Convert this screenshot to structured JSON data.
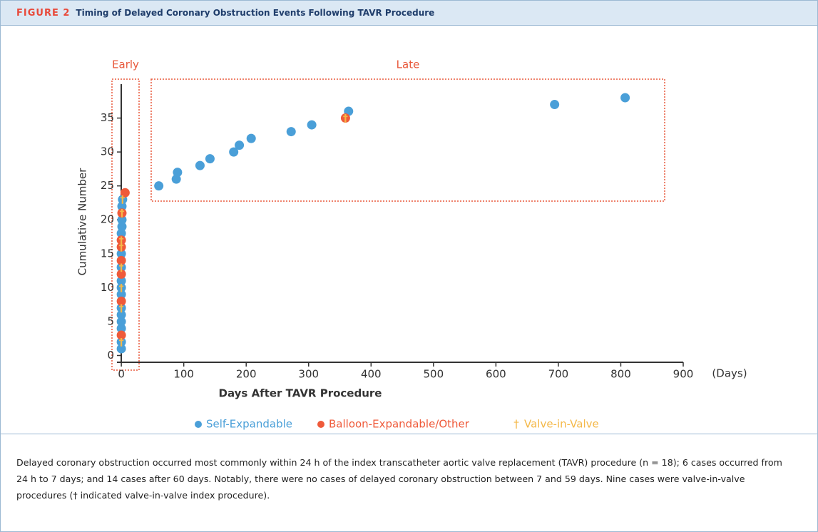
{
  "header": {
    "label": "FIGURE 2",
    "title": "Timing of Delayed Coronary Obstruction Events Following TAVR Procedure"
  },
  "chart_data": {
    "type": "scatter",
    "x_label": "Days After TAVR Procedure",
    "x_unit": "(Days)",
    "y_label": "Cumulative Number",
    "annotations": [
      "Early",
      "Late"
    ],
    "xlim": [
      -7,
      900
    ],
    "ylim": [
      -1,
      40
    ],
    "xticks": [
      0,
      100,
      200,
      300,
      400,
      500,
      600,
      700,
      800,
      900
    ],
    "yticks": [
      0,
      5,
      10,
      15,
      20,
      25,
      30,
      35
    ],
    "series": [
      {
        "name": "Self-Expandable",
        "color": "#4a9fd8",
        "marker": "●",
        "x": [
          0,
          0,
          0,
          0,
          0,
          0,
          0,
          0,
          0,
          0,
          0,
          0,
          1,
          1,
          1,
          2,
          60,
          88,
          90,
          126,
          142,
          180,
          189,
          208,
          272,
          305,
          364,
          694,
          807
        ],
        "values": [
          1,
          2,
          4,
          5,
          6,
          7,
          9,
          10,
          11,
          13,
          15,
          18,
          19,
          20,
          22,
          23,
          25,
          26,
          27,
          28,
          29,
          30,
          31,
          32,
          33,
          34,
          36,
          37,
          38
        ]
      },
      {
        "name": "Balloon-Expandable/Other",
        "color": "#ef5a3a",
        "marker": "●",
        "x": [
          0,
          0,
          0,
          0,
          0,
          0,
          1,
          6,
          359
        ],
        "values": [
          3,
          8,
          12,
          14,
          16,
          17,
          21,
          24,
          35
        ]
      },
      {
        "name": "Valve-in-Valve",
        "color": "#f4b848",
        "marker": "†",
        "x": [
          0,
          0,
          0,
          0,
          0,
          0,
          1,
          2,
          359
        ],
        "values": [
          2,
          7,
          10,
          13,
          16,
          17,
          21,
          23,
          35
        ]
      }
    ]
  },
  "caption": "Delayed coronary obstruction occurred most commonly within 24 h of the index transcatheter aortic valve replacement (TAVR) procedure (n = 18); 6 cases occurred from 24 h to 7 days; and 14 cases after 60 days. Notably, there were no cases of delayed coronary obstruction between 7 and 59 days. Nine cases were valve-in-valve procedures († indicated valve-in-valve index procedure)."
}
